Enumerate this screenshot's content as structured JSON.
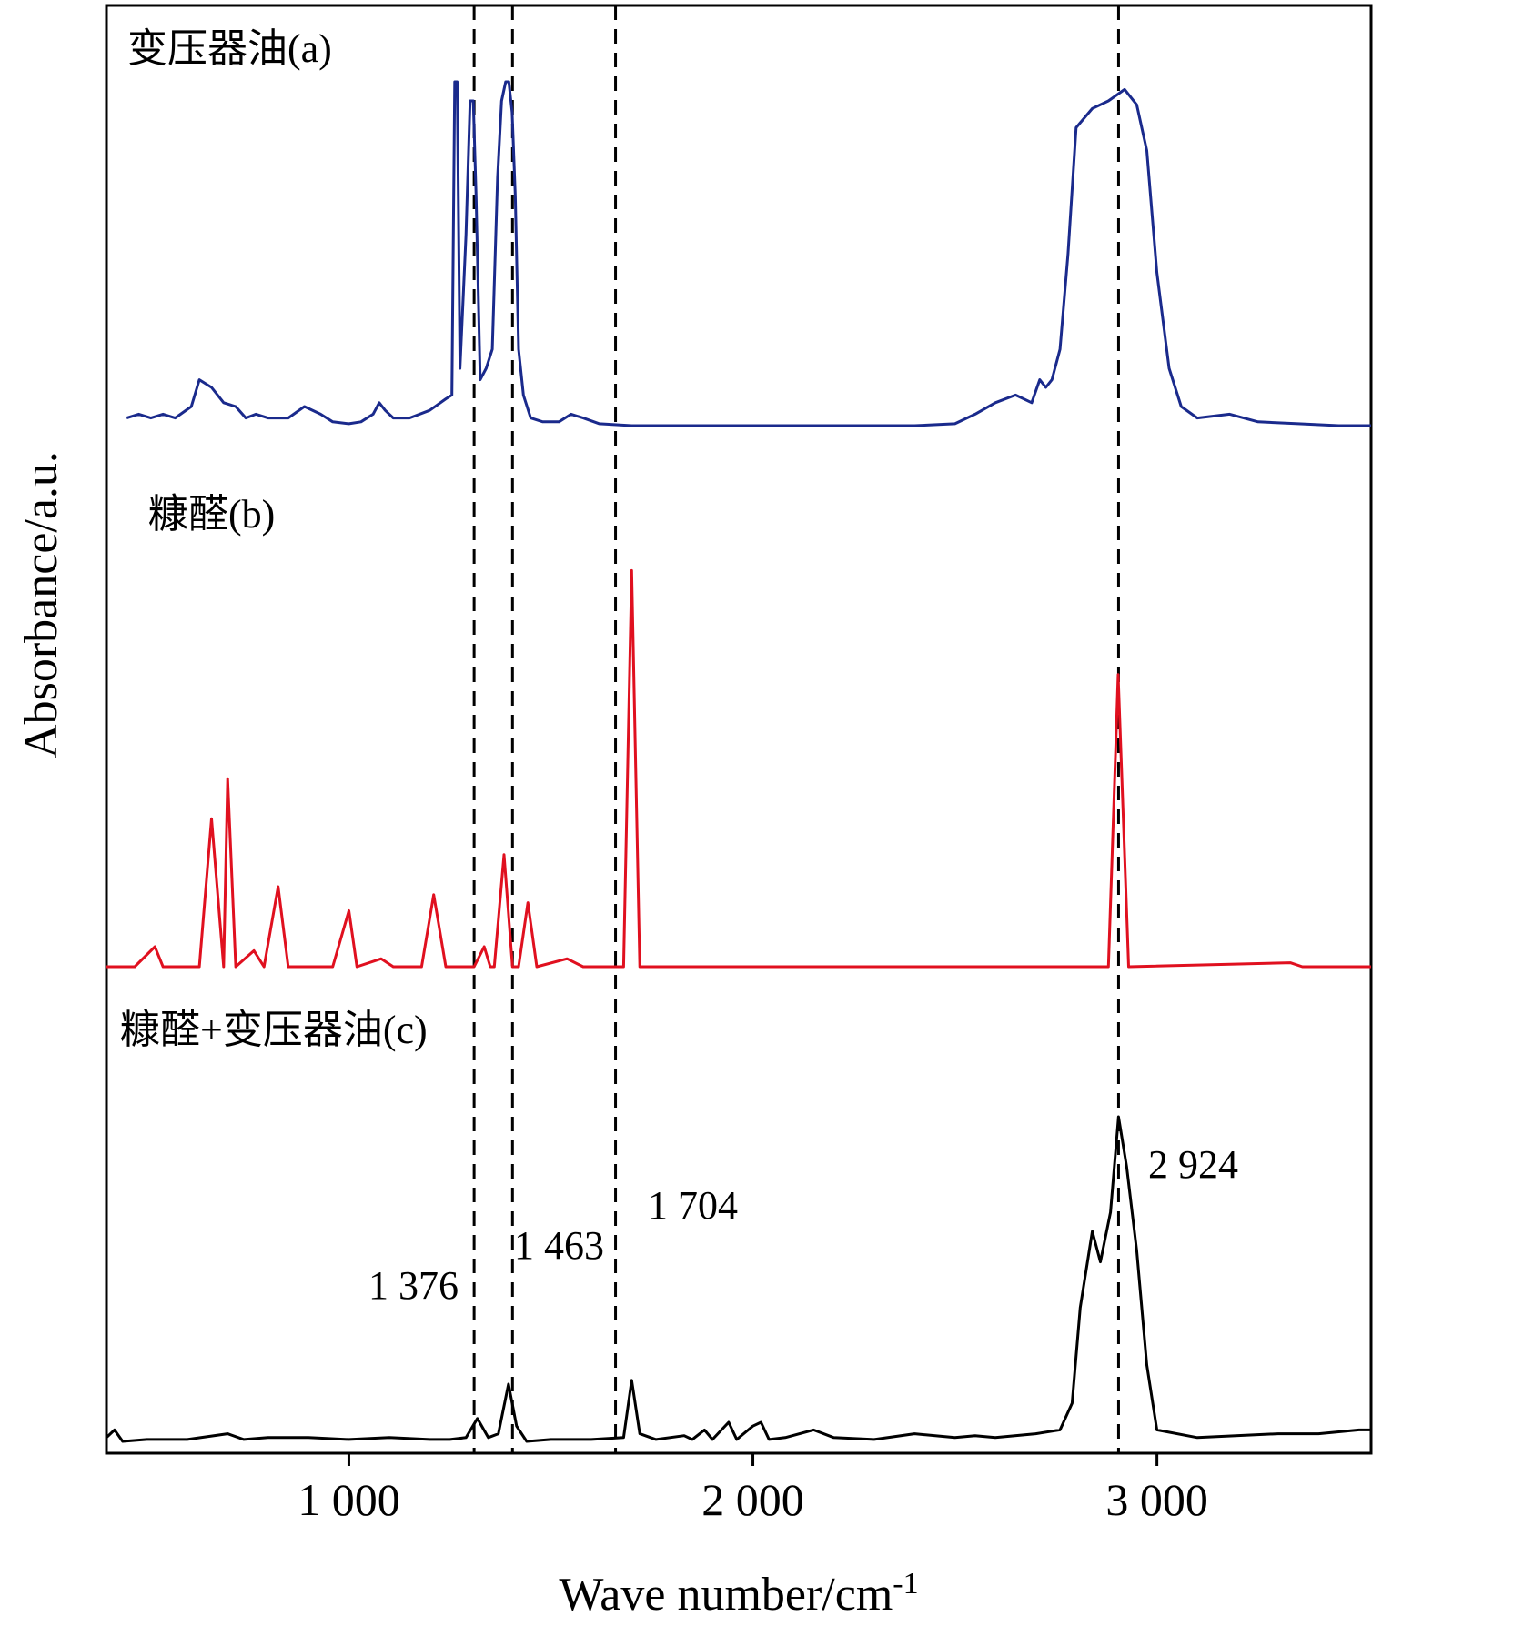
{
  "chart_data": {
    "type": "line",
    "title": "",
    "xlabel": "Wave number/cm",
    "xlabel_sup": "-1",
    "ylabel": "Absorbance/a.u.",
    "xlim": [
      400,
      3530
    ],
    "x_ticks": [
      1000,
      2000,
      3000
    ],
    "x_tick_labels": [
      "1 000",
      "2 000",
      "3 000"
    ],
    "grid": false,
    "y_ticks": "none",
    "colors": {
      "a": "#1a2a8c",
      "b": "#e0101f",
      "c": "#000000",
      "axis": "#000000"
    },
    "series": [
      {
        "name": "变压器油(a)",
        "points": [
          [
            450,
            0.02
          ],
          [
            480,
            0.03
          ],
          [
            510,
            0.02
          ],
          [
            540,
            0.03
          ],
          [
            570,
            0.02
          ],
          [
            610,
            0.05
          ],
          [
            630,
            0.12
          ],
          [
            660,
            0.1
          ],
          [
            690,
            0.06
          ],
          [
            720,
            0.05
          ],
          [
            745,
            0.02
          ],
          [
            770,
            0.03
          ],
          [
            800,
            0.02
          ],
          [
            850,
            0.02
          ],
          [
            890,
            0.05
          ],
          [
            930,
            0.03
          ],
          [
            960,
            0.01
          ],
          [
            1000,
            0.005
          ],
          [
            1030,
            0.01
          ],
          [
            1060,
            0.03
          ],
          [
            1075,
            0.06
          ],
          [
            1090,
            0.04
          ],
          [
            1110,
            0.02
          ],
          [
            1150,
            0.02
          ],
          [
            1200,
            0.04
          ],
          [
            1240,
            0.07
          ],
          [
            1255,
            0.08
          ],
          [
            1262,
            0.9
          ],
          [
            1268,
            0.9
          ],
          [
            1275,
            0.15
          ],
          [
            1290,
            0.5
          ],
          [
            1300,
            0.85
          ],
          [
            1308,
            0.85
          ],
          [
            1315,
            0.6
          ],
          [
            1325,
            0.12
          ],
          [
            1340,
            0.15
          ],
          [
            1355,
            0.2
          ],
          [
            1368,
            0.65
          ],
          [
            1378,
            0.85
          ],
          [
            1388,
            0.9
          ],
          [
            1396,
            0.9
          ],
          [
            1404,
            0.82
          ],
          [
            1412,
            0.6
          ],
          [
            1420,
            0.2
          ],
          [
            1432,
            0.08
          ],
          [
            1450,
            0.02
          ],
          [
            1480,
            0.01
          ],
          [
            1520,
            0.01
          ],
          [
            1550,
            0.03
          ],
          [
            1580,
            0.02
          ],
          [
            1620,
            0.005
          ],
          [
            1700,
            0.0
          ],
          [
            1800,
            0.0
          ],
          [
            2000,
            0.0
          ],
          [
            2200,
            0.0
          ],
          [
            2400,
            0.0
          ],
          [
            2500,
            0.005
          ],
          [
            2550,
            0.03
          ],
          [
            2600,
            0.06
          ],
          [
            2650,
            0.08
          ],
          [
            2690,
            0.06
          ],
          [
            2710,
            0.12
          ],
          [
            2725,
            0.1
          ],
          [
            2740,
            0.12
          ],
          [
            2760,
            0.2
          ],
          [
            2780,
            0.45
          ],
          [
            2800,
            0.78
          ],
          [
            2840,
            0.83
          ],
          [
            2880,
            0.85
          ],
          [
            2920,
            0.88
          ],
          [
            2950,
            0.84
          ],
          [
            2975,
            0.72
          ],
          [
            3000,
            0.4
          ],
          [
            3030,
            0.15
          ],
          [
            3060,
            0.05
          ],
          [
            3100,
            0.02
          ],
          [
            3180,
            0.03
          ],
          [
            3250,
            0.01
          ],
          [
            3350,
            0.005
          ],
          [
            3450,
            0.0
          ],
          [
            3530,
            0.0
          ]
        ]
      },
      {
        "name": "糠醛(b)",
        "points": [
          [
            400,
            0.0
          ],
          [
            470,
            0.0
          ],
          [
            520,
            0.05
          ],
          [
            540,
            0.0
          ],
          [
            630,
            0.0
          ],
          [
            660,
            0.37
          ],
          [
            690,
            0.0
          ],
          [
            700,
            0.47
          ],
          [
            720,
            0.0
          ],
          [
            765,
            0.04
          ],
          [
            790,
            0.0
          ],
          [
            825,
            0.2
          ],
          [
            850,
            0.0
          ],
          [
            960,
            0.0
          ],
          [
            1000,
            0.14
          ],
          [
            1020,
            0.0
          ],
          [
            1080,
            0.02
          ],
          [
            1110,
            0.0
          ],
          [
            1180,
            0.0
          ],
          [
            1210,
            0.18
          ],
          [
            1240,
            0.0
          ],
          [
            1310,
            0.0
          ],
          [
            1335,
            0.05
          ],
          [
            1350,
            0.0
          ],
          [
            1360,
            0.0
          ],
          [
            1384,
            0.28
          ],
          [
            1405,
            0.0
          ],
          [
            1420,
            0.0
          ],
          [
            1443,
            0.16
          ],
          [
            1465,
            0.0
          ],
          [
            1540,
            0.02
          ],
          [
            1580,
            0.0
          ],
          [
            1680,
            0.0
          ],
          [
            1700,
            0.99
          ],
          [
            1720,
            0.0
          ],
          [
            2880,
            0.0
          ],
          [
            2904,
            0.73
          ],
          [
            2930,
            0.0
          ],
          [
            3330,
            0.01
          ],
          [
            3360,
            0.0
          ],
          [
            3530,
            0.0
          ]
        ]
      },
      {
        "name": "糠醛+变压器油(c)",
        "points": [
          [
            400,
            0.01
          ],
          [
            420,
            0.03
          ],
          [
            440,
            0.0
          ],
          [
            500,
            0.005
          ],
          [
            600,
            0.005
          ],
          [
            700,
            0.02
          ],
          [
            740,
            0.005
          ],
          [
            800,
            0.01
          ],
          [
            900,
            0.01
          ],
          [
            1000,
            0.005
          ],
          [
            1100,
            0.01
          ],
          [
            1200,
            0.005
          ],
          [
            1250,
            0.005
          ],
          [
            1290,
            0.01
          ],
          [
            1318,
            0.06
          ],
          [
            1345,
            0.01
          ],
          [
            1370,
            0.02
          ],
          [
            1395,
            0.15
          ],
          [
            1415,
            0.04
          ],
          [
            1440,
            0.0
          ],
          [
            1500,
            0.005
          ],
          [
            1600,
            0.005
          ],
          [
            1680,
            0.01
          ],
          [
            1700,
            0.16
          ],
          [
            1720,
            0.02
          ],
          [
            1760,
            0.005
          ],
          [
            1830,
            0.015
          ],
          [
            1850,
            0.005
          ],
          [
            1880,
            0.03
          ],
          [
            1900,
            0.005
          ],
          [
            1940,
            0.05
          ],
          [
            1960,
            0.005
          ],
          [
            2000,
            0.04
          ],
          [
            2020,
            0.05
          ],
          [
            2040,
            0.005
          ],
          [
            2080,
            0.01
          ],
          [
            2150,
            0.03
          ],
          [
            2200,
            0.01
          ],
          [
            2300,
            0.005
          ],
          [
            2400,
            0.02
          ],
          [
            2500,
            0.01
          ],
          [
            2550,
            0.015
          ],
          [
            2600,
            0.01
          ],
          [
            2700,
            0.02
          ],
          [
            2760,
            0.03
          ],
          [
            2790,
            0.1
          ],
          [
            2810,
            0.35
          ],
          [
            2840,
            0.55
          ],
          [
            2860,
            0.47
          ],
          [
            2885,
            0.6
          ],
          [
            2905,
            0.85
          ],
          [
            2925,
            0.72
          ],
          [
            2950,
            0.5
          ],
          [
            2975,
            0.2
          ],
          [
            3000,
            0.03
          ],
          [
            3100,
            0.01
          ],
          [
            3300,
            0.02
          ],
          [
            3400,
            0.02
          ],
          [
            3500,
            0.03
          ],
          [
            3530,
            0.03
          ]
        ]
      }
    ],
    "vlines": [
      1310,
      1405,
      1660,
      2905
    ],
    "annotations": [
      {
        "text": "1 376",
        "x": 1376
      },
      {
        "text": "1 463",
        "x": 1463
      },
      {
        "text": "1 704",
        "x": 1704
      },
      {
        "text": "2 924",
        "x": 2924
      }
    ]
  }
}
